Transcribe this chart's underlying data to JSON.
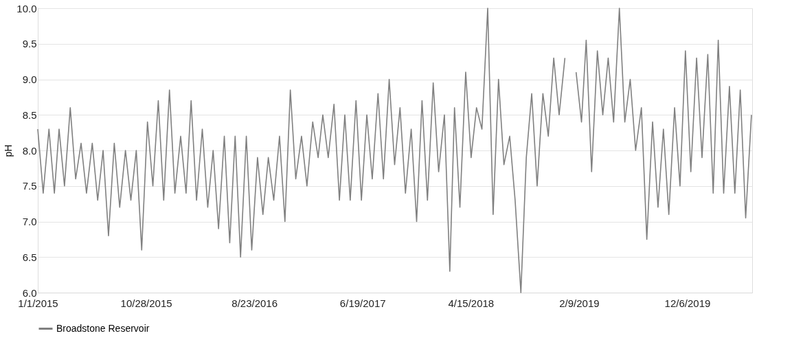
{
  "chart_data": {
    "type": "line",
    "ylabel": "pH",
    "xlim": [
      "2015-01-01",
      "2020-06-03"
    ],
    "xticks": [
      {
        "value": "2015-01-01",
        "label": "1/1/2015"
      },
      {
        "value": "2015-10-28",
        "label": "10/28/2015"
      },
      {
        "value": "2016-08-23",
        "label": "8/23/2016"
      },
      {
        "value": "2017-06-19",
        "label": "6/19/2017"
      },
      {
        "value": "2018-04-15",
        "label": "4/15/2018"
      },
      {
        "value": "2019-02-09",
        "label": "2/9/2019"
      },
      {
        "value": "2019-12-06",
        "label": "12/6/2019"
      }
    ],
    "ylim": [
      6.0,
      10.0
    ],
    "yticks": [
      {
        "value": 6.0,
        "label": "6.0"
      },
      {
        "value": 6.5,
        "label": "6.5"
      },
      {
        "value": 7.0,
        "label": "7.0"
      },
      {
        "value": 7.5,
        "label": "7.5"
      },
      {
        "value": 8.0,
        "label": "8.0"
      },
      {
        "value": 8.5,
        "label": "8.5"
      },
      {
        "value": 9.0,
        "label": "9.0"
      },
      {
        "value": 9.5,
        "label": "9.5"
      },
      {
        "value": 10.0,
        "label": "10.0"
      }
    ],
    "grid": "y",
    "legend": "bottom",
    "marker": "none",
    "line_style": "solid",
    "series": [
      {
        "name": "Broadstone Reservoir",
        "color": "#808080",
        "x": [
          "2015-01-01",
          "2015-01-16",
          "2015-02-01",
          "2015-02-16",
          "2015-03-01",
          "2015-03-16",
          "2015-04-01",
          "2015-04-16",
          "2015-05-01",
          "2015-05-16",
          "2015-06-01",
          "2015-06-16",
          "2015-07-01",
          "2015-07-16",
          "2015-08-01",
          "2015-08-16",
          "2015-09-01",
          "2015-09-16",
          "2015-10-01",
          "2015-10-16",
          "2015-11-01",
          "2015-11-16",
          "2015-12-01",
          "2015-12-16",
          "2016-01-01",
          "2016-01-16",
          "2016-02-01",
          "2016-02-16",
          "2016-03-01",
          "2016-03-16",
          "2016-04-01",
          "2016-04-16",
          "2016-05-01",
          "2016-05-16",
          "2016-06-01",
          "2016-06-16",
          "2016-07-01",
          "2016-07-16",
          "2016-08-01",
          "2016-08-16",
          "2016-09-01",
          "2016-09-16",
          "2016-10-01",
          "2016-10-16",
          "2016-11-01",
          "2016-11-16",
          "2016-12-01",
          "2016-12-16",
          "2017-01-01",
          "2017-01-16",
          "2017-02-01",
          "2017-02-16",
          "2017-03-01",
          "2017-03-16",
          "2017-04-01",
          "2017-04-16",
          "2017-05-01",
          "2017-05-16",
          "2017-06-01",
          "2017-06-16",
          "2017-07-01",
          "2017-07-16",
          "2017-08-01",
          "2017-08-16",
          "2017-09-01",
          "2017-09-16",
          "2017-10-01",
          "2017-10-16",
          "2017-11-01",
          "2017-11-16",
          "2017-12-01",
          "2017-12-16",
          "2018-01-01",
          "2018-01-16",
          "2018-02-01",
          "2018-02-16",
          "2018-03-01",
          "2018-03-16",
          "2018-04-01",
          "2018-04-16",
          "2018-05-01",
          "2018-05-16",
          "2018-06-01",
          "2018-06-16",
          "2018-07-01",
          "2018-07-16",
          "2018-08-01",
          "2018-08-16",
          "2018-09-01",
          "2018-09-16",
          "2018-10-01",
          "2018-10-16",
          "2018-11-01",
          "2018-11-16",
          "2018-12-01",
          "2018-12-16",
          "2019-01-01",
          "2019-01-16",
          "2019-02-01",
          "2019-02-16",
          "2019-03-01",
          "2019-03-16",
          "2019-04-01",
          "2019-04-16",
          "2019-05-01",
          "2019-05-16",
          "2019-06-01",
          "2019-06-16",
          "2019-07-01",
          "2019-07-16",
          "2019-08-01",
          "2019-08-16",
          "2019-09-01",
          "2019-09-16",
          "2019-10-01",
          "2019-10-16",
          "2019-11-01",
          "2019-11-16",
          "2019-12-01",
          "2019-12-16",
          "2020-01-01",
          "2020-01-16",
          "2020-02-01",
          "2020-02-16",
          "2020-03-01",
          "2020-03-16",
          "2020-04-01",
          "2020-04-16",
          "2020-05-01",
          "2020-05-16",
          "2020-06-01"
        ],
        "values": [
          8.3,
          7.4,
          8.3,
          7.4,
          8.3,
          7.5,
          8.6,
          7.6,
          8.1,
          7.4,
          8.1,
          7.3,
          8.0,
          6.8,
          8.1,
          7.2,
          8.0,
          7.3,
          8.0,
          6.6,
          8.4,
          7.5,
          8.7,
          7.3,
          8.85,
          7.4,
          8.2,
          7.4,
          8.7,
          7.3,
          8.3,
          7.2,
          8.0,
          6.9,
          8.2,
          6.7,
          8.2,
          6.5,
          8.2,
          6.6,
          7.9,
          7.1,
          7.9,
          7.3,
          8.2,
          7.0,
          8.85,
          7.6,
          8.2,
          7.5,
          8.4,
          7.9,
          8.5,
          7.9,
          8.65,
          7.3,
          8.5,
          7.3,
          8.7,
          7.3,
          8.5,
          7.6,
          8.8,
          7.6,
          9.0,
          7.8,
          8.6,
          7.4,
          8.3,
          7.0,
          8.7,
          7.3,
          8.95,
          7.7,
          8.5,
          6.3,
          8.6,
          7.2,
          9.1,
          7.9,
          8.6,
          8.3,
          10.0,
          7.1,
          9.0,
          7.8,
          8.2,
          7.3,
          6.0,
          7.9,
          8.8,
          7.5,
          8.8,
          8.2,
          9.3,
          8.5,
          9.3,
          null,
          9.1,
          8.4,
          9.55,
          7.7,
          9.4,
          8.5,
          9.3,
          8.4,
          10.0,
          8.4,
          9.0,
          8.0,
          8.6,
          6.75,
          8.4,
          7.2,
          8.3,
          7.1,
          8.6,
          7.5,
          9.4,
          7.7,
          9.3,
          7.9,
          9.35,
          7.4,
          9.55,
          7.4,
          8.9,
          7.4,
          8.85,
          7.05,
          8.5
        ]
      }
    ]
  }
}
